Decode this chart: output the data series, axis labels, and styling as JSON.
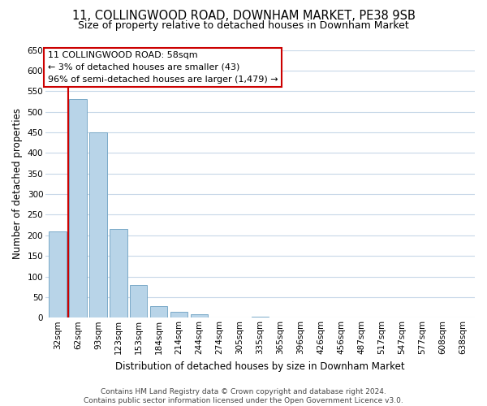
{
  "title": "11, COLLINGWOOD ROAD, DOWNHAM MARKET, PE38 9SB",
  "subtitle": "Size of property relative to detached houses in Downham Market",
  "xlabel": "Distribution of detached houses by size in Downham Market",
  "ylabel": "Number of detached properties",
  "bar_labels": [
    "32sqm",
    "62sqm",
    "93sqm",
    "123sqm",
    "153sqm",
    "184sqm",
    "214sqm",
    "244sqm",
    "274sqm",
    "305sqm",
    "335sqm",
    "365sqm",
    "396sqm",
    "426sqm",
    "456sqm",
    "487sqm",
    "517sqm",
    "547sqm",
    "577sqm",
    "608sqm",
    "638sqm"
  ],
  "bar_values": [
    210,
    530,
    450,
    215,
    80,
    28,
    15,
    8,
    0,
    0,
    3,
    0,
    0,
    1,
    0,
    0,
    0,
    0,
    0,
    1,
    1
  ],
  "bar_color": "#b8d4e8",
  "bar_edge_color": "#7aaac8",
  "marker_color": "#cc0000",
  "red_line_x": 0.5,
  "ylim": [
    0,
    650
  ],
  "yticks": [
    0,
    50,
    100,
    150,
    200,
    250,
    300,
    350,
    400,
    450,
    500,
    550,
    600,
    650
  ],
  "annotation_box_text": "11 COLLINGWOOD ROAD: 58sqm\n← 3% of detached houses are smaller (43)\n96% of semi-detached houses are larger (1,479) →",
  "footer_text": "Contains HM Land Registry data © Crown copyright and database right 2024.\nContains public sector information licensed under the Open Government Licence v3.0.",
  "background_color": "#ffffff",
  "grid_color": "#c8d8e8",
  "title_fontsize": 10.5,
  "subtitle_fontsize": 9,
  "axis_label_fontsize": 8.5,
  "tick_fontsize": 7.5,
  "annotation_fontsize": 8,
  "footer_fontsize": 6.5
}
